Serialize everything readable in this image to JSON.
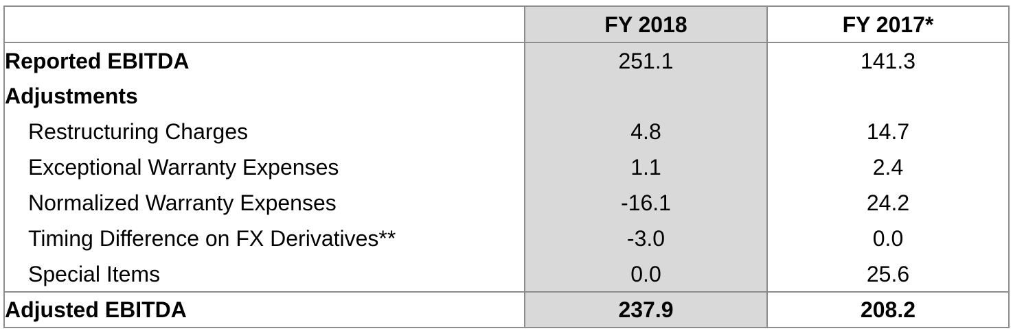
{
  "table": {
    "columns": [
      "",
      "FY 2018",
      "FY 2017*"
    ],
    "rows": [
      {
        "label": "Reported EBITDA",
        "fy2018": "251.1",
        "fy2017": "141.3",
        "bold": true
      },
      {
        "label": "Adjustments",
        "fy2018": "",
        "fy2017": "",
        "bold": true
      },
      {
        "label": "Restructuring Charges",
        "fy2018": "4.8",
        "fy2017": "14.7",
        "bold": false
      },
      {
        "label": "Exceptional Warranty Expenses",
        "fy2018": "1.1",
        "fy2017": "2.4",
        "bold": false
      },
      {
        "label": "Normalized Warranty Expenses",
        "fy2018": "-16.1",
        "fy2017": "24.2",
        "bold": false
      },
      {
        "label": "Timing Difference on FX Derivatives**",
        "fy2018": "-3.0",
        "fy2017": "0.0",
        "bold": false
      },
      {
        "label": "Special Items",
        "fy2018": "0.0",
        "fy2017": "25.6",
        "bold": false
      },
      {
        "label": "Adjusted EBITDA",
        "fy2018": "237.9",
        "fy2017": "208.2",
        "bold": true
      }
    ],
    "colors": {
      "border": "#8c8c8c",
      "highlight_column": "#d9d9d9",
      "text": "#000000"
    }
  }
}
